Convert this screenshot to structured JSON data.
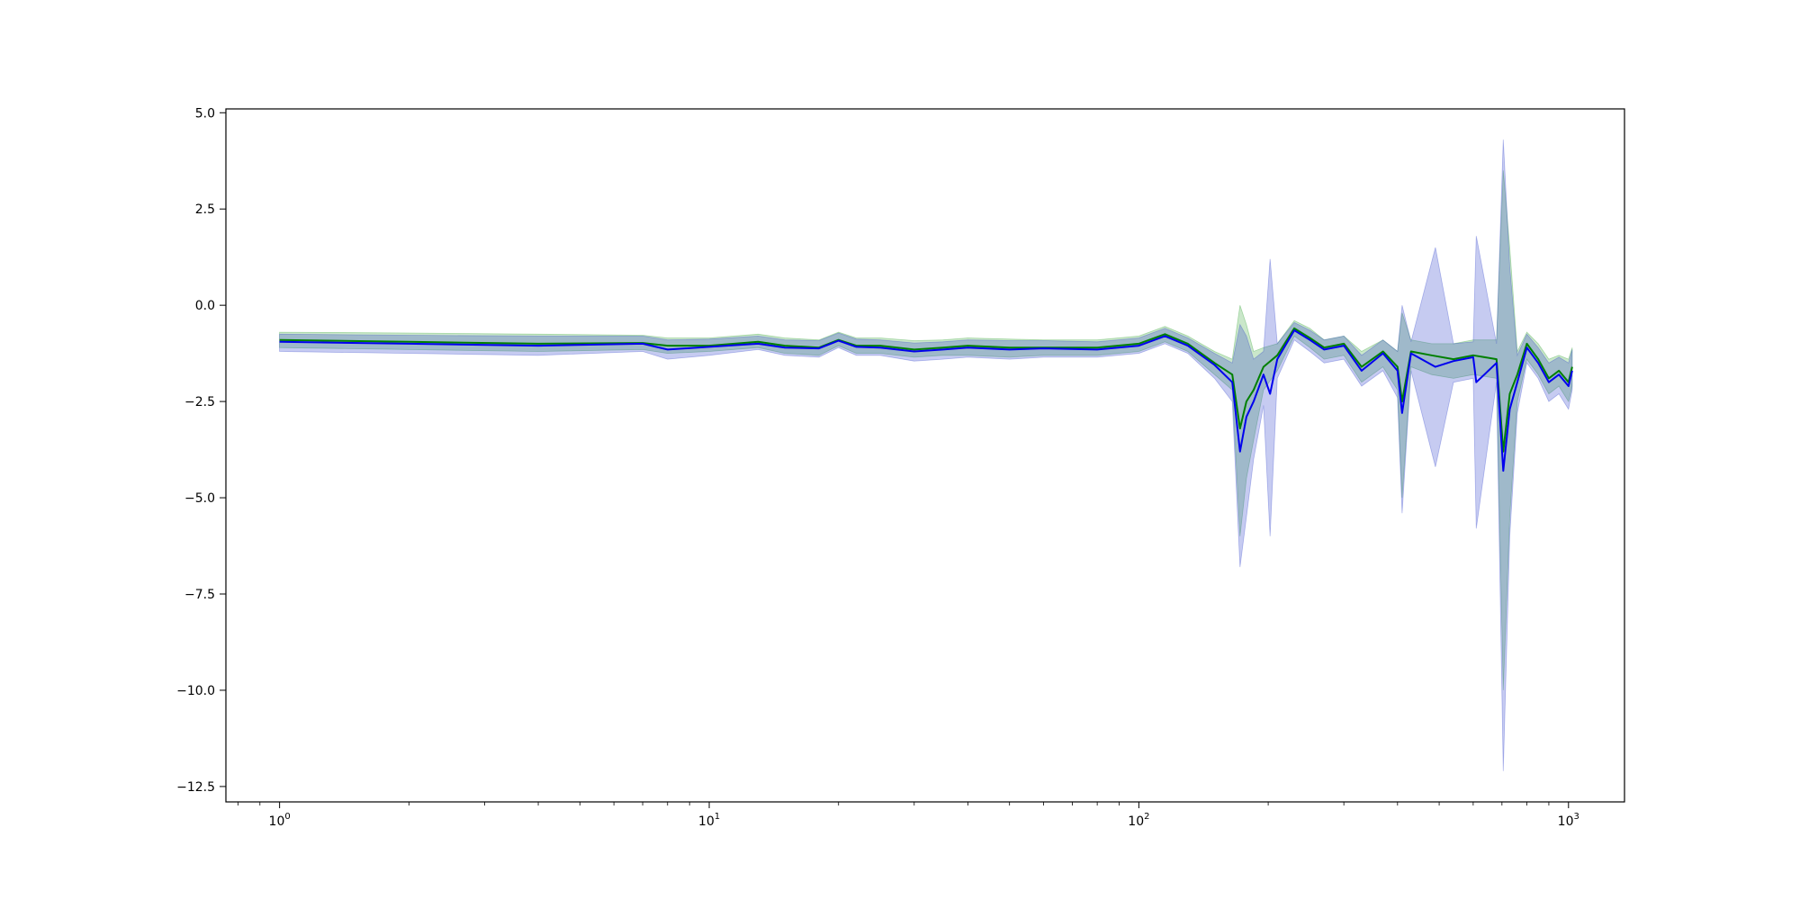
{
  "chart_data": {
    "type": "line",
    "title": "",
    "xlabel": "",
    "ylabel": "",
    "x_scale": "log",
    "xlim": [
      0.75,
      1350
    ],
    "ylim": [
      -12.9,
      5.1
    ],
    "grid": false,
    "legend": "none",
    "x_ticks": [
      {
        "value": 1,
        "base": "10",
        "exp": "0"
      },
      {
        "value": 10,
        "base": "10",
        "exp": "1"
      },
      {
        "value": 100,
        "base": "10",
        "exp": "2"
      },
      {
        "value": 1000,
        "base": "10",
        "exp": "3"
      }
    ],
    "y_ticks": [
      {
        "value": 5.0,
        "label": "5.0"
      },
      {
        "value": 2.5,
        "label": "2.5"
      },
      {
        "value": 0.0,
        "label": "0.0"
      },
      {
        "value": -2.5,
        "label": "−2.5"
      },
      {
        "value": -5.0,
        "label": "−5.0"
      },
      {
        "value": -7.5,
        "label": "−7.5"
      },
      {
        "value": -10.0,
        "label": "−10.0"
      },
      {
        "value": -12.5,
        "label": "−12.5"
      }
    ],
    "series": [
      {
        "color": "#008000",
        "band_color": "#2ca02c",
        "band_opacity": 0.25,
        "points": [
          [
            1,
            -0.9,
            -1.1,
            -0.7
          ],
          [
            2,
            -0.95,
            -1.15,
            -0.72
          ],
          [
            4,
            -1.0,
            -1.2,
            -0.75
          ],
          [
            7,
            -0.98,
            -1.15,
            -0.78
          ],
          [
            8,
            -1.05,
            -1.25,
            -0.85
          ],
          [
            10,
            -1.05,
            -1.2,
            -0.85
          ],
          [
            13,
            -0.95,
            -1.1,
            -0.75
          ],
          [
            15,
            -1.05,
            -1.25,
            -0.85
          ],
          [
            18,
            -1.1,
            -1.3,
            -0.9
          ],
          [
            20,
            -0.9,
            -1.05,
            -0.7
          ],
          [
            22,
            -1.05,
            -1.25,
            -0.85
          ],
          [
            25,
            -1.05,
            -1.25,
            -0.85
          ],
          [
            30,
            -1.15,
            -1.35,
            -0.92
          ],
          [
            35,
            -1.1,
            -1.3,
            -0.9
          ],
          [
            40,
            -1.05,
            -1.3,
            -0.85
          ],
          [
            50,
            -1.1,
            -1.35,
            -0.88
          ],
          [
            60,
            -1.1,
            -1.3,
            -0.9
          ],
          [
            80,
            -1.1,
            -1.3,
            -0.9
          ],
          [
            100,
            -1.0,
            -1.2,
            -0.8
          ],
          [
            115,
            -0.75,
            -0.95,
            -0.55
          ],
          [
            130,
            -1.0,
            -1.2,
            -0.8
          ],
          [
            150,
            -1.5,
            -1.8,
            -1.2
          ],
          [
            165,
            -1.8,
            -2.2,
            -1.4
          ],
          [
            172,
            -3.2,
            -6.0,
            0.0
          ],
          [
            178,
            -2.5,
            -4.5,
            -0.5
          ],
          [
            185,
            -2.2,
            -3.5,
            -1.2
          ],
          [
            195,
            -1.6,
            -2.2,
            -1.1
          ],
          [
            210,
            -1.3,
            -1.7,
            -1.0
          ],
          [
            230,
            -0.6,
            -0.8,
            -0.4
          ],
          [
            250,
            -0.85,
            -1.1,
            -0.6
          ],
          [
            270,
            -1.1,
            -1.4,
            -0.9
          ],
          [
            300,
            -1.0,
            -1.3,
            -0.8
          ],
          [
            330,
            -1.6,
            -2.0,
            -1.2
          ],
          [
            370,
            -1.2,
            -1.6,
            -0.9
          ],
          [
            400,
            -1.6,
            -2.2,
            -1.2
          ],
          [
            410,
            -2.5,
            -5.0,
            -0.2
          ],
          [
            430,
            -1.2,
            -1.6,
            -0.9
          ],
          [
            480,
            -1.3,
            -1.8,
            -1.0
          ],
          [
            540,
            -1.4,
            -1.9,
            -1.0
          ],
          [
            600,
            -1.3,
            -1.8,
            -0.9
          ],
          [
            680,
            -1.4,
            -1.9,
            -0.9
          ],
          [
            705,
            -3.8,
            -10.0,
            3.5
          ],
          [
            730,
            -2.3,
            -5.5,
            1.5
          ],
          [
            760,
            -1.8,
            -2.5,
            -1.2
          ],
          [
            800,
            -1.0,
            -1.4,
            -0.7
          ],
          [
            850,
            -1.4,
            -1.8,
            -1.0
          ],
          [
            900,
            -1.9,
            -2.3,
            -1.4
          ],
          [
            950,
            -1.7,
            -2.1,
            -1.3
          ],
          [
            1000,
            -2.0,
            -2.5,
            -1.4
          ],
          [
            1020,
            -1.6,
            -2.1,
            -1.1
          ]
        ]
      },
      {
        "color": "#0000ee",
        "band_color": "#3344cc",
        "band_opacity": 0.28,
        "points": [
          [
            1,
            -0.95,
            -1.2,
            -0.75
          ],
          [
            2,
            -1.0,
            -1.25,
            -0.78
          ],
          [
            4,
            -1.05,
            -1.3,
            -0.8
          ],
          [
            7,
            -1.0,
            -1.2,
            -0.8
          ],
          [
            8,
            -1.15,
            -1.4,
            -0.9
          ],
          [
            10,
            -1.08,
            -1.3,
            -0.88
          ],
          [
            13,
            -1.0,
            -1.15,
            -0.8
          ],
          [
            15,
            -1.1,
            -1.3,
            -0.9
          ],
          [
            18,
            -1.12,
            -1.35,
            -0.92
          ],
          [
            20,
            -0.92,
            -1.1,
            -0.72
          ],
          [
            22,
            -1.08,
            -1.3,
            -0.88
          ],
          [
            25,
            -1.1,
            -1.3,
            -0.9
          ],
          [
            30,
            -1.2,
            -1.45,
            -0.98
          ],
          [
            35,
            -1.15,
            -1.4,
            -0.95
          ],
          [
            40,
            -1.1,
            -1.35,
            -0.9
          ],
          [
            50,
            -1.15,
            -1.4,
            -0.92
          ],
          [
            60,
            -1.12,
            -1.35,
            -0.92
          ],
          [
            80,
            -1.15,
            -1.35,
            -0.95
          ],
          [
            100,
            -1.05,
            -1.25,
            -0.85
          ],
          [
            115,
            -0.8,
            -1.0,
            -0.6
          ],
          [
            130,
            -1.05,
            -1.25,
            -0.85
          ],
          [
            150,
            -1.55,
            -1.9,
            -1.25
          ],
          [
            165,
            -2.0,
            -2.5,
            -1.5
          ],
          [
            172,
            -3.8,
            -6.8,
            -0.5
          ],
          [
            178,
            -2.9,
            -5.5,
            -0.8
          ],
          [
            185,
            -2.5,
            -4.0,
            -1.4
          ],
          [
            195,
            -1.8,
            -2.6,
            -1.2
          ],
          [
            202,
            -2.3,
            -6.0,
            1.2
          ],
          [
            210,
            -1.4,
            -1.9,
            -1.0
          ],
          [
            230,
            -0.65,
            -0.9,
            -0.45
          ],
          [
            250,
            -0.9,
            -1.2,
            -0.65
          ],
          [
            270,
            -1.15,
            -1.5,
            -0.9
          ],
          [
            300,
            -1.05,
            -1.4,
            -0.8
          ],
          [
            330,
            -1.7,
            -2.1,
            -1.3
          ],
          [
            370,
            -1.25,
            -1.7,
            -0.9
          ],
          [
            400,
            -1.7,
            -2.4,
            -1.2
          ],
          [
            410,
            -2.8,
            -5.4,
            0.0
          ],
          [
            430,
            -1.25,
            -1.7,
            -0.95
          ],
          [
            490,
            -1.6,
            -4.2,
            1.5
          ],
          [
            540,
            -1.45,
            -2.0,
            -1.0
          ],
          [
            600,
            -1.35,
            -1.9,
            -0.95
          ],
          [
            610,
            -2.0,
            -5.8,
            1.8
          ],
          [
            680,
            -1.5,
            -2.0,
            -1.0
          ],
          [
            705,
            -4.3,
            -12.1,
            4.3
          ],
          [
            730,
            -2.7,
            -6.0,
            1.0
          ],
          [
            760,
            -2.0,
            -2.8,
            -1.3
          ],
          [
            800,
            -1.1,
            -1.5,
            -0.75
          ],
          [
            850,
            -1.5,
            -1.9,
            -1.1
          ],
          [
            900,
            -2.0,
            -2.5,
            -1.5
          ],
          [
            950,
            -1.8,
            -2.3,
            -1.35
          ],
          [
            1000,
            -2.1,
            -2.7,
            -1.5
          ],
          [
            1020,
            -1.7,
            -2.2,
            -1.15
          ]
        ]
      }
    ]
  }
}
